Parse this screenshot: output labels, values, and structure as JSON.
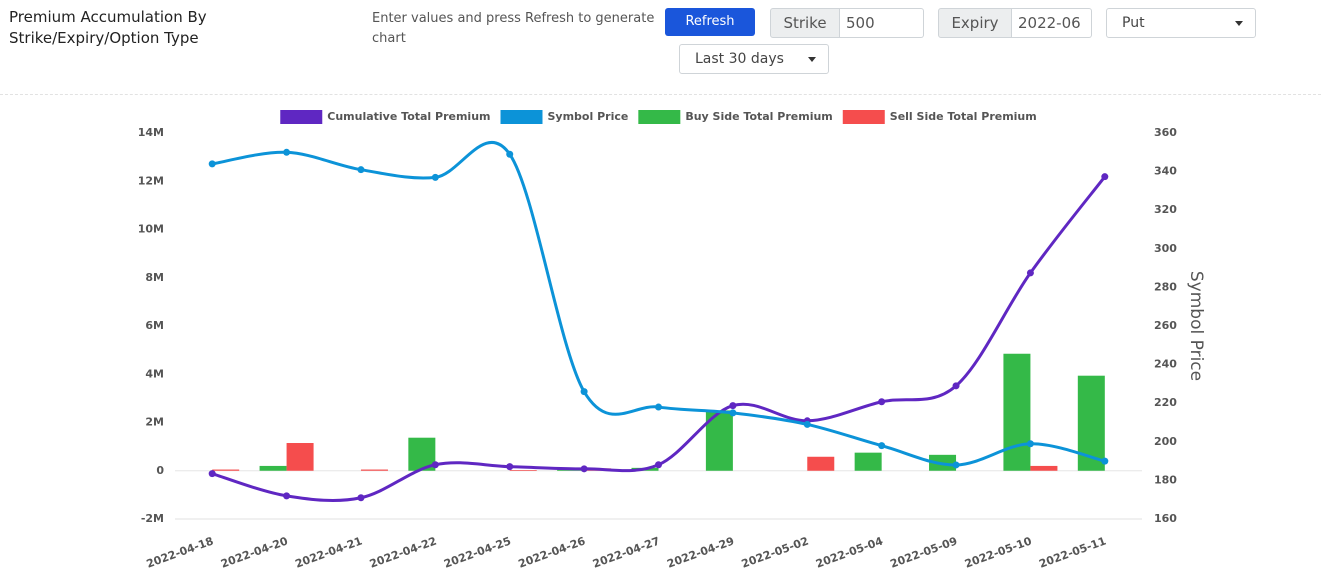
{
  "header": {
    "title": "Premium Accumulation By Strike/Expiry/Option Type",
    "hint": "Enter values and press Refresh to generate chart",
    "refresh": "Refresh",
    "strike_label": "Strike",
    "strike_value": "500",
    "expiry_label": "Expiry",
    "expiry_value": "2022-06",
    "option_type": "Put",
    "period": "Last 30 days"
  },
  "chart_data": {
    "type": "combo",
    "legend": "top",
    "grid": false,
    "categories": [
      "2022-04-18",
      "2022-04-20",
      "2022-04-21",
      "2022-04-22",
      "2022-04-25",
      "2022-04-26",
      "2022-04-27",
      "2022-04-29",
      "2022-05-02",
      "2022-05-04",
      "2022-05-09",
      "2022-05-10",
      "2022-05-11"
    ],
    "ylim": [
      -2000000,
      14000000
    ],
    "yticks": [
      {
        "value": -2000000,
        "label": "-2M"
      },
      0,
      {
        "value": 2000000,
        "label": "2M"
      },
      {
        "value": 4000000,
        "label": "4M"
      },
      {
        "value": 6000000,
        "label": "6M"
      },
      {
        "value": 8000000,
        "label": "8M"
      },
      {
        "value": 10000000,
        "label": "10M"
      },
      {
        "value": 12000000,
        "label": "12M"
      },
      {
        "value": 14000000,
        "label": "14M"
      }
    ],
    "y2lim": [
      160,
      360
    ],
    "y2ticks": [
      160,
      180,
      200,
      220,
      240,
      260,
      280,
      300,
      320,
      340,
      360
    ],
    "y2label": "Symbol Price",
    "series": [
      {
        "name": "Cumulative Total Premium",
        "type": "line",
        "color": "#5f27c2",
        "values": [
          -120000,
          -1040000,
          -1120000,
          250000,
          170000,
          80000,
          250000,
          2700000,
          2070000,
          2860000,
          3520000,
          8200000,
          12190000
        ]
      },
      {
        "name": "Symbol Price",
        "type": "line",
        "color": "#0c93d8",
        "axis": "y2",
        "values": [
          344,
          350,
          341,
          337,
          349,
          226,
          218,
          215,
          209,
          198,
          188,
          199,
          190
        ]
      },
      {
        "name": "Buy Side Total Premium",
        "type": "bar",
        "color": "#34b948",
        "values": [
          0,
          200000,
          0,
          1370000,
          0,
          50000,
          120000,
          2500000,
          0,
          750000,
          660000,
          4850000,
          3940000
        ]
      },
      {
        "name": "Sell Side Total Premium",
        "type": "bar",
        "color": "#f54d4d",
        "values": [
          50000,
          1150000,
          50000,
          0,
          30000,
          100000,
          0,
          0,
          580000,
          0,
          0,
          200000,
          0
        ]
      }
    ]
  }
}
